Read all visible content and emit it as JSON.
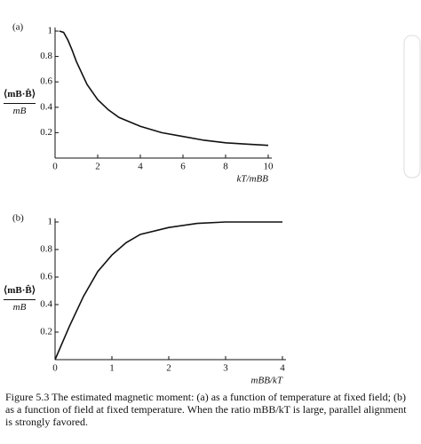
{
  "chart_data": [
    {
      "type": "line",
      "panel": "(a)",
      "ylabel": "⟨mB·B̂⟩",
      "ylabel_denominator": "mB",
      "xlabel": "kT/mBB",
      "x": [
        0.2,
        0.4,
        0.6,
        0.8,
        1,
        1.5,
        2,
        2.5,
        3,
        4,
        5,
        6,
        7,
        8,
        9,
        10
      ],
      "values": [
        1.0,
        0.99,
        0.93,
        0.85,
        0.76,
        0.58,
        0.46,
        0.38,
        0.32,
        0.25,
        0.2,
        0.17,
        0.14,
        0.12,
        0.11,
        0.1
      ],
      "color": "#111111",
      "xlim": [
        0,
        10
      ],
      "ylim": [
        0,
        1
      ],
      "xticks": [
        0,
        2,
        4,
        6,
        8,
        10
      ],
      "yticks": [
        0.2,
        0.4,
        0.6,
        0.8,
        1
      ]
    },
    {
      "type": "line",
      "panel": "(b)",
      "ylabel": "⟨mB·B̂⟩",
      "ylabel_denominator": "mB",
      "xlabel": "mBB/kT",
      "x": [
        0,
        0.25,
        0.5,
        0.75,
        1,
        1.25,
        1.5,
        2,
        2.5,
        3,
        3.5,
        4
      ],
      "values": [
        0,
        0.24,
        0.46,
        0.64,
        0.76,
        0.85,
        0.91,
        0.96,
        0.99,
        1.0,
        1.0,
        1.0
      ],
      "color": "#111111",
      "xlim": [
        0,
        4
      ],
      "ylim": [
        0,
        1
      ],
      "xticks": [
        0,
        1,
        2,
        3,
        4
      ],
      "yticks": [
        0.2,
        0.4,
        0.6,
        0.8,
        1
      ]
    }
  ],
  "caption": "Figure 5.3 The estimated magnetic moment: (a) as a function of temperature at fixed field; (b) as a function of field at fixed temperature. When the ratio mBB/kT is large, parallel alignment is strongly favored."
}
